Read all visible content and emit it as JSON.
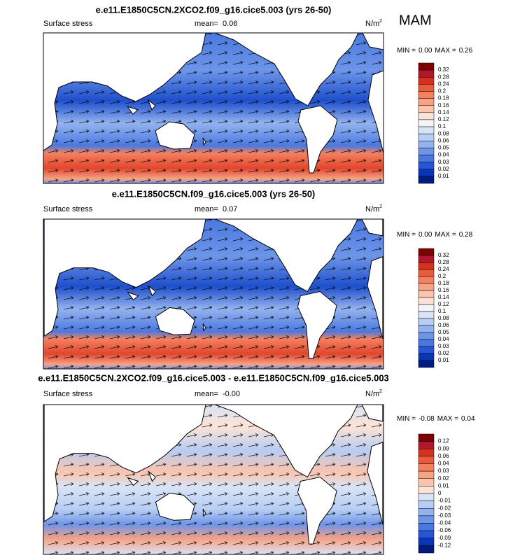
{
  "season": "MAM",
  "panels": [
    {
      "title": "e.e11.E1850C5CN.2XCO2.f09_g16.cice5.003 (yrs 26-50)",
      "left_label": "Surface stress",
      "mean_label": "mean=",
      "mean": "0.06",
      "units": "N/m",
      "units_exp": "2",
      "min_label": "MIN =",
      "min": "0.00",
      "max_label": "MAX =",
      "max": "0.26",
      "colorbar": {
        "labels": [
          "0.32",
          "0.28",
          "0.24",
          "0.2",
          "0.18",
          "0.16",
          "0.14",
          "0.12",
          "0.1",
          "0.08",
          "0.06",
          "0.05",
          "0.04",
          "0.03",
          "0.02",
          "0.01"
        ],
        "colors": [
          "#7f0000",
          "#b2182b",
          "#d6301f",
          "#ec5a3c",
          "#f4815e",
          "#f8a386",
          "#fbc4ae",
          "#fde3d6",
          "#f4f4f4",
          "#d8e3f7",
          "#b7cdf3",
          "#94b3ee",
          "#6d95e8",
          "#4a78e0",
          "#2556d6",
          "#0a35b8",
          "#001b80"
        ]
      }
    },
    {
      "title": "e.e11.E1850C5CN.f09_g16.cice5.003 (yrs 26-50)",
      "left_label": "Surface stress",
      "mean_label": "mean=",
      "mean": "0.07",
      "units": "N/m",
      "units_exp": "2",
      "min_label": "MIN =",
      "min": "0.00",
      "max_label": "MAX =",
      "max": "0.28",
      "colorbar": {
        "labels": [
          "0.32",
          "0.28",
          "0.24",
          "0.2",
          "0.18",
          "0.16",
          "0.14",
          "0.12",
          "0.1",
          "0.08",
          "0.06",
          "0.05",
          "0.04",
          "0.03",
          "0.02",
          "0.01"
        ],
        "colors": [
          "#7f0000",
          "#b2182b",
          "#d6301f",
          "#ec5a3c",
          "#f4815e",
          "#f8a386",
          "#fbc4ae",
          "#fde3d6",
          "#f4f4f4",
          "#d8e3f7",
          "#b7cdf3",
          "#94b3ee",
          "#6d95e8",
          "#4a78e0",
          "#2556d6",
          "#0a35b8",
          "#001b80"
        ]
      }
    },
    {
      "title": "e.e11.E1850C5CN.2XCO2.f09_g16.cice5.003 - e.e11.E1850C5CN.f09_g16.cice5.003",
      "left_label": "Surface stress",
      "mean_label": "mean=",
      "mean": "-0.00",
      "units": "N/m",
      "units_exp": "2",
      "min_label": "MIN =",
      "min": "-0.08",
      "max_label": "MAX =",
      "max": "0.04",
      "colorbar": {
        "labels": [
          "0.12",
          "0.09",
          "0.06",
          "0.04",
          "0.03",
          "0.02",
          "0.01",
          "0",
          "-0.01",
          "-0.02",
          "-0.03",
          "-0.04",
          "-0.06",
          "-0.09",
          "-0.12"
        ],
        "colors": [
          "#7f0000",
          "#b2182b",
          "#d6301f",
          "#ec5a3c",
          "#f4815e",
          "#f8a386",
          "#fbc4ae",
          "#fde3d6",
          "#d8e3f7",
          "#b7cdf3",
          "#94b3ee",
          "#6d95e8",
          "#4a78e0",
          "#2556d6",
          "#0a35b8",
          "#001b80"
        ]
      }
    }
  ]
}
